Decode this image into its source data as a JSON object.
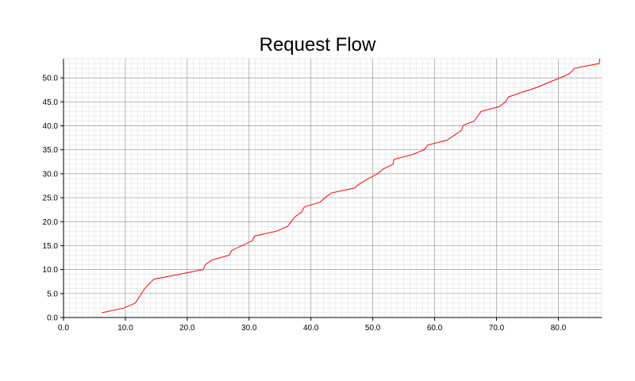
{
  "chart_data": {
    "type": "line",
    "title": "Request Flow",
    "xlabel": "",
    "ylabel": "",
    "xlim": [
      0,
      87
    ],
    "ylim": [
      0,
      54
    ],
    "x_ticks": [
      "0.0",
      "10.0",
      "20.0",
      "30.0",
      "40.0",
      "50.0",
      "60.0",
      "70.0",
      "80.0"
    ],
    "y_ticks": [
      "0.0",
      "5.0",
      "10.0",
      "15.0",
      "20.0",
      "25.0",
      "30.0",
      "35.0",
      "40.0",
      "45.0",
      "50.0"
    ],
    "grid": true,
    "line_color": "#ff0000",
    "series": [
      {
        "x": [
          6.2,
          9.8,
          11.6,
          13.1,
          14.6,
          22.6,
          22.9,
          24.0,
          26.8,
          27.2,
          30.5,
          30.9,
          34.4,
          35.3,
          36.2,
          37.4,
          38.5,
          38.9,
          39.2,
          41.4,
          42.3,
          43.3,
          47.0,
          48.0,
          49.3,
          50.8,
          51.7,
          53.3,
          53.4,
          56.4,
          58.3,
          58.6,
          58.9,
          62.0,
          64.3,
          64.6,
          64.8,
          66.4,
          67.5,
          70.4,
          71.5,
          71.9,
          74.1,
          76.5,
          78.9,
          81.2,
          81.9,
          82.6,
          86.6,
          86.7
        ]
      },
      {
        "y": [
          1,
          2,
          3,
          6,
          8,
          10,
          11,
          12,
          13,
          14,
          16,
          17,
          18,
          18.5,
          19,
          21,
          22,
          23,
          23.2,
          24,
          25,
          26,
          27,
          28,
          29,
          30,
          31,
          32,
          33,
          34,
          35,
          35.5,
          36,
          37,
          39,
          40,
          40.2,
          41,
          43,
          44,
          45,
          46,
          47,
          48,
          49.3,
          50.5,
          51,
          52,
          53,
          54
        ]
      }
    ]
  }
}
